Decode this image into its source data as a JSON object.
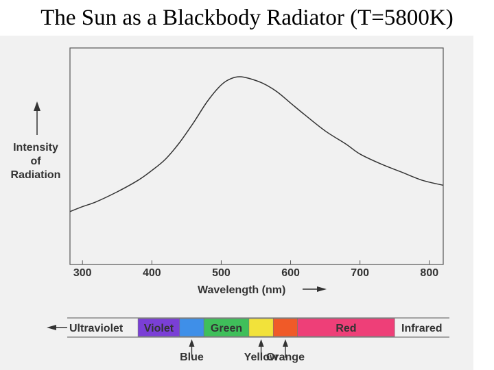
{
  "title": "The Sun as a Blackbody Radiator (T=5800K)",
  "chart_data": {
    "type": "line",
    "title": "The Sun as a Blackbody Radiator (T=5800K)",
    "xlabel": "Wavelength (nm)",
    "ylabel": [
      "Intensity",
      "of",
      "Radiation"
    ],
    "xlim": [
      282,
      820
    ],
    "ylim": [
      0,
      1
    ],
    "x_ticks": [
      "300",
      "400",
      "500",
      "600",
      "700",
      "800"
    ],
    "y_ticks_shown": false,
    "grid": false,
    "series": [
      {
        "points": [
          [
            282,
            0.18
          ],
          [
            300,
            0.21
          ],
          [
            320,
            0.24
          ],
          [
            350,
            0.3
          ],
          [
            380,
            0.37
          ],
          [
            400,
            0.43
          ],
          [
            420,
            0.5
          ],
          [
            440,
            0.6
          ],
          [
            460,
            0.72
          ],
          [
            480,
            0.85
          ],
          [
            500,
            0.95
          ],
          [
            515,
            0.99
          ],
          [
            527,
            1.0
          ],
          [
            540,
            0.99
          ],
          [
            560,
            0.96
          ],
          [
            580,
            0.91
          ],
          [
            600,
            0.84
          ],
          [
            620,
            0.77
          ],
          [
            650,
            0.67
          ],
          [
            680,
            0.59
          ],
          [
            700,
            0.53
          ],
          [
            730,
            0.47
          ],
          [
            760,
            0.42
          ],
          [
            790,
            0.37
          ],
          [
            820,
            0.34
          ]
        ]
      }
    ],
    "spectrum_bar": {
      "left_label": "Ultraviolet",
      "right_label": "Infrared",
      "bands": [
        {
          "label": "Violet",
          "from": 380,
          "to": 440,
          "color": "#7a3fd6",
          "labeled_inside": true
        },
        {
          "label": "Blue",
          "from": 440,
          "to": 475,
          "color": "#3f8fe8",
          "labeled_inside": false
        },
        {
          "label": "Green",
          "from": 475,
          "to": 540,
          "color": "#3fbf5a",
          "labeled_inside": true
        },
        {
          "label": "Yellow",
          "from": 540,
          "to": 575,
          "color": "#f2e23a",
          "labeled_inside": false
        },
        {
          "label": "Orange",
          "from": 575,
          "to": 610,
          "color": "#f05a28",
          "labeled_inside": false
        },
        {
          "label": "Red",
          "from": 610,
          "to": 750,
          "color": "#ee3f78",
          "labeled_inside": true
        }
      ],
      "callouts": [
        "Blue",
        "Yellow",
        "Orange"
      ]
    }
  }
}
